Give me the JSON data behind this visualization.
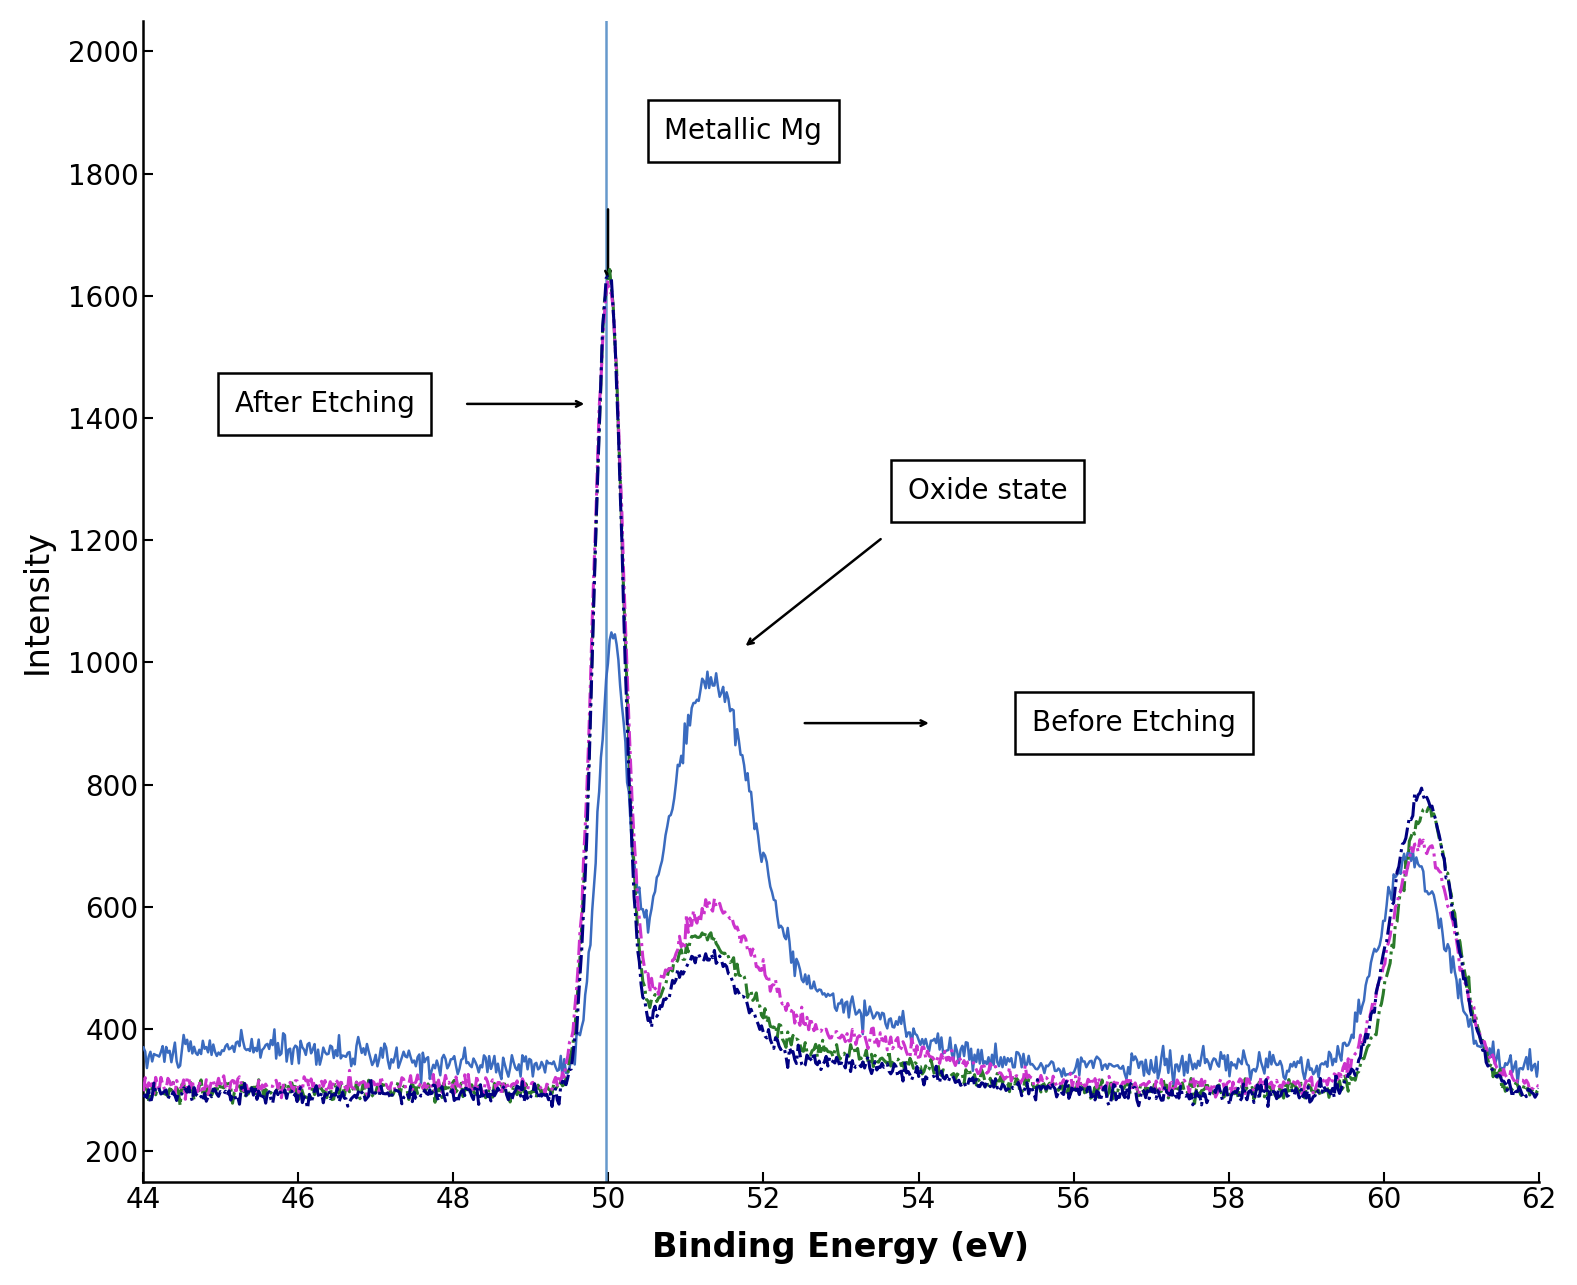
{
  "xlabel": "Binding Energy (eV)",
  "ylabel": "Intensity",
  "xlim": [
    44,
    62
  ],
  "ylim": [
    150,
    2050
  ],
  "yticks": [
    200,
    400,
    600,
    800,
    1000,
    1200,
    1400,
    1600,
    1800,
    2000
  ],
  "xticks": [
    44,
    46,
    48,
    50,
    52,
    54,
    56,
    58,
    60,
    62
  ],
  "vline_x": 49.97,
  "vline_color": "#6699cc",
  "blue_solid_color": "#3a6bbf",
  "green_dashdot_color": "#2a7a2a",
  "magenta_dashdot_color": "#cc33cc",
  "navy_dashdot_color": "#000080",
  "background_color": "#ffffff",
  "fontsize_labels": 24,
  "fontsize_ticks": 20,
  "fontsize_annotations": 20
}
